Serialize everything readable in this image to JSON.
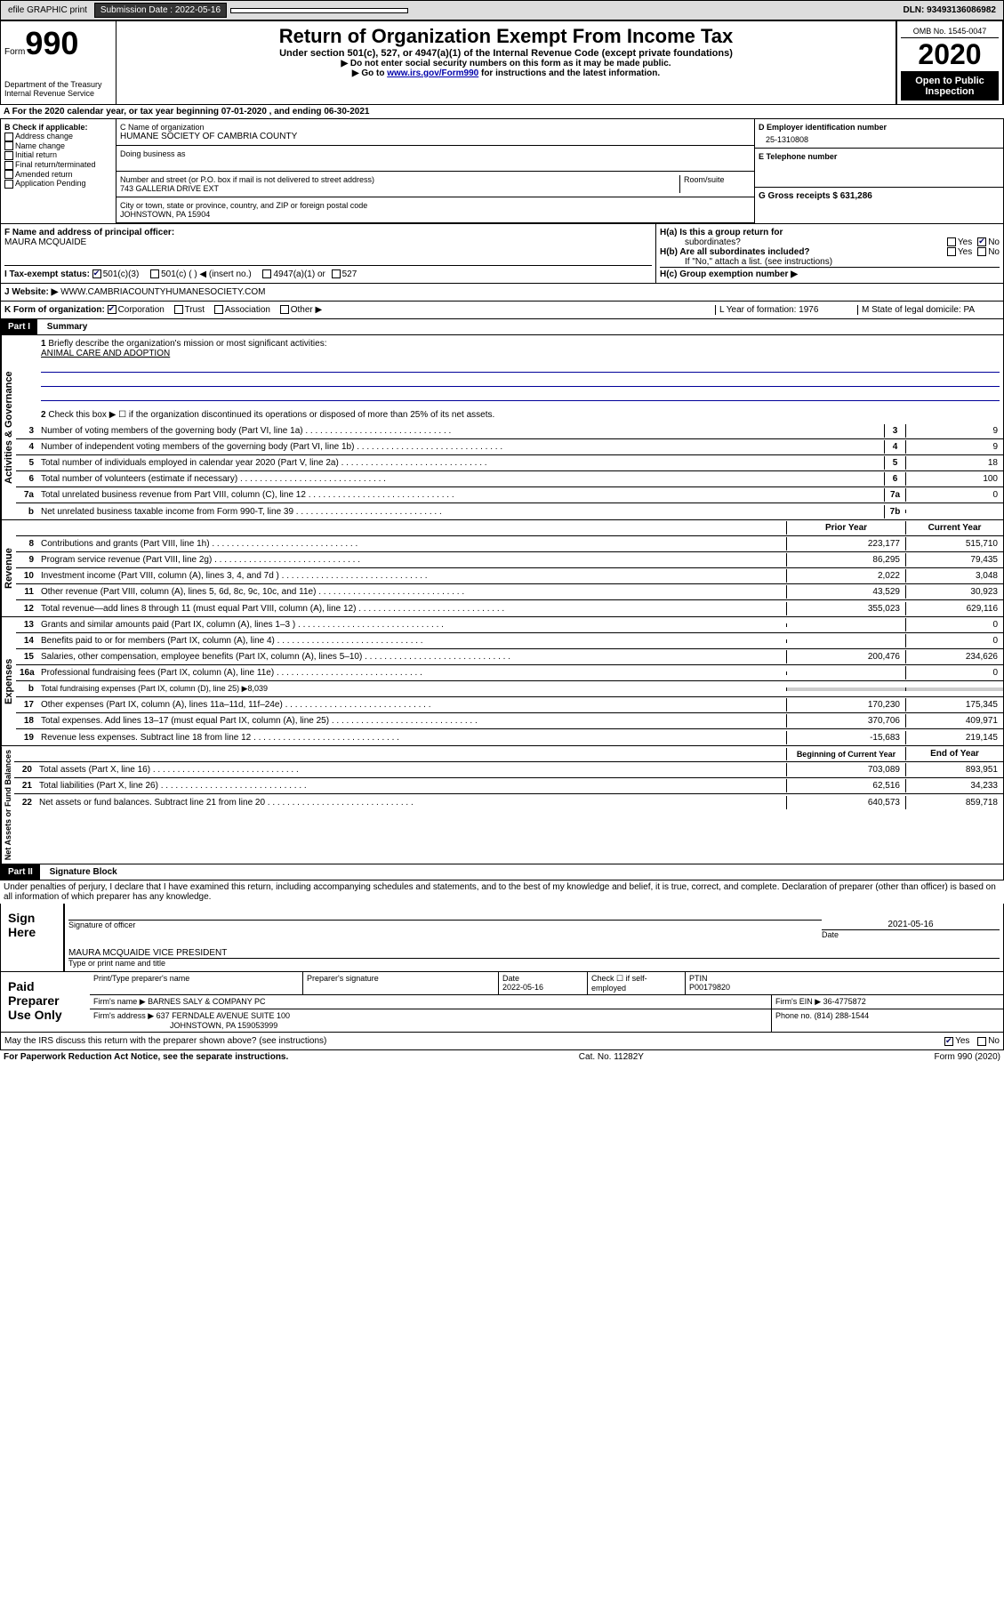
{
  "topbar": {
    "efile": "efile GRAPHIC print",
    "submission_label": "Submission Date : 2022-05-16",
    "dln_label": "DLN: 93493136086982"
  },
  "header": {
    "form_label": "Form",
    "form_number": "990",
    "dept": "Department of the Treasury\nInternal Revenue Service",
    "title": "Return of Organization Exempt From Income Tax",
    "subtitle": "Under section 501(c), 527, or 4947(a)(1) of the Internal Revenue Code (except private foundations)",
    "instr1": "▶ Do not enter social security numbers on this form as it may be made public.",
    "instr2_pre": "▶ Go to ",
    "instr2_link": "www.irs.gov/Form990",
    "instr2_post": " for instructions and the latest information.",
    "omb": "OMB No. 1545-0047",
    "year": "2020",
    "open_public": "Open to Public Inspection"
  },
  "period": "A For the 2020 calendar year, or tax year beginning 07-01-2020   , and ending 06-30-2021",
  "sectionB": {
    "label": "B Check if applicable:",
    "items": [
      "Address change",
      "Name change",
      "Initial return",
      "Final return/terminated",
      "Amended return",
      "Application Pending"
    ]
  },
  "sectionC": {
    "name_label": "C Name of organization",
    "name": "HUMANE SOCIETY OF CAMBRIA COUNTY",
    "dba_label": "Doing business as",
    "street_label": "Number and street (or P.O. box if mail is not delivered to street address)",
    "room_label": "Room/suite",
    "street": "743 GALLERIA DRIVE EXT",
    "city_label": "City or town, state or province, country, and ZIP or foreign postal code",
    "city": "JOHNSTOWN, PA  15904"
  },
  "sectionD": {
    "label": "D Employer identification number",
    "value": "25-1310808"
  },
  "sectionE": {
    "label": "E Telephone number"
  },
  "sectionG": {
    "label": "G Gross receipts $ 631,286"
  },
  "sectionF": {
    "label": "F Name and address of principal officer:",
    "name": "MAURA MCQUAIDE"
  },
  "sectionH": {
    "a_label": "H(a)  Is this a group return for",
    "a_sub": "subordinates?",
    "b_label": "H(b)  Are all subordinates included?",
    "b_instr": "If \"No,\" attach a list. (see instructions)",
    "c_label": "H(c)  Group exemption number ▶",
    "yes": "Yes",
    "no": "No"
  },
  "sectionI": {
    "label": "I   Tax-exempt status:",
    "opts": [
      "501(c)(3)",
      "501(c) (  ) ◀ (insert no.)",
      "4947(a)(1) or",
      "527"
    ]
  },
  "sectionJ": {
    "label": "J   Website: ▶",
    "value": "WWW.CAMBRIACOUNTYHUMANESOCIETY.COM"
  },
  "sectionK": {
    "label": "K Form of organization:",
    "opts": [
      "Corporation",
      "Trust",
      "Association",
      "Other ▶"
    ]
  },
  "sectionL": {
    "label": "L Year of formation: 1976"
  },
  "sectionM": {
    "label": "M State of legal domicile: PA"
  },
  "part1": {
    "header": "Part I",
    "title": "Summary",
    "q1": "Briefly describe the organization's mission or most significant activities:",
    "mission": "ANIMAL CARE AND ADOPTION",
    "q2": "Check this box ▶ ☐ if the organization discontinued its operations or disposed of more than 25% of its net assets.",
    "lines": [
      {
        "n": "3",
        "t": "Number of voting members of the governing body (Part VI, line 1a)",
        "box": "3",
        "v": "9"
      },
      {
        "n": "4",
        "t": "Number of independent voting members of the governing body (Part VI, line 1b)",
        "box": "4",
        "v": "9"
      },
      {
        "n": "5",
        "t": "Total number of individuals employed in calendar year 2020 (Part V, line 2a)",
        "box": "5",
        "v": "18"
      },
      {
        "n": "6",
        "t": "Total number of volunteers (estimate if necessary)",
        "box": "6",
        "v": "100"
      },
      {
        "n": "7a",
        "t": "Total unrelated business revenue from Part VIII, column (C), line 12",
        "box": "7a",
        "v": "0"
      },
      {
        "n": "b",
        "t": "Net unrelated business taxable income from Form 990-T, line 39",
        "box": "7b",
        "v": ""
      }
    ],
    "hdr_prior": "Prior Year",
    "hdr_current": "Current Year",
    "revenue": [
      {
        "n": "8",
        "t": "Contributions and grants (Part VIII, line 1h)",
        "p": "223,177",
        "c": "515,710"
      },
      {
        "n": "9",
        "t": "Program service revenue (Part VIII, line 2g)",
        "p": "86,295",
        "c": "79,435"
      },
      {
        "n": "10",
        "t": "Investment income (Part VIII, column (A), lines 3, 4, and 7d )",
        "p": "2,022",
        "c": "3,048"
      },
      {
        "n": "11",
        "t": "Other revenue (Part VIII, column (A), lines 5, 6d, 8c, 9c, 10c, and 11e)",
        "p": "43,529",
        "c": "30,923"
      },
      {
        "n": "12",
        "t": "Total revenue—add lines 8 through 11 (must equal Part VIII, column (A), line 12)",
        "p": "355,023",
        "c": "629,116"
      }
    ],
    "expenses": [
      {
        "n": "13",
        "t": "Grants and similar amounts paid (Part IX, column (A), lines 1–3 )",
        "p": "",
        "c": "0"
      },
      {
        "n": "14",
        "t": "Benefits paid to or for members (Part IX, column (A), line 4)",
        "p": "",
        "c": "0"
      },
      {
        "n": "15",
        "t": "Salaries, other compensation, employee benefits (Part IX, column (A), lines 5–10)",
        "p": "200,476",
        "c": "234,626"
      },
      {
        "n": "16a",
        "t": "Professional fundraising fees (Part IX, column (A), line 11e)",
        "p": "",
        "c": "0"
      },
      {
        "n": "b",
        "t": "Total fundraising expenses (Part IX, column (D), line 25) ▶8,039",
        "p": "gray",
        "c": "gray"
      },
      {
        "n": "17",
        "t": "Other expenses (Part IX, column (A), lines 11a–11d, 11f–24e)",
        "p": "170,230",
        "c": "175,345"
      },
      {
        "n": "18",
        "t": "Total expenses. Add lines 13–17 (must equal Part IX, column (A), line 25)",
        "p": "370,706",
        "c": "409,971"
      },
      {
        "n": "19",
        "t": "Revenue less expenses. Subtract line 18 from line 12",
        "p": "-15,683",
        "c": "219,145"
      }
    ],
    "hdr_begin": "Beginning of Current Year",
    "hdr_end": "End of Year",
    "netassets": [
      {
        "n": "20",
        "t": "Total assets (Part X, line 16)",
        "p": "703,089",
        "c": "893,951"
      },
      {
        "n": "21",
        "t": "Total liabilities (Part X, line 26)",
        "p": "62,516",
        "c": "34,233"
      },
      {
        "n": "22",
        "t": "Net assets or fund balances. Subtract line 21 from line 20",
        "p": "640,573",
        "c": "859,718"
      }
    ],
    "vlabel_gov": "Activities & Governance",
    "vlabel_rev": "Revenue",
    "vlabel_exp": "Expenses",
    "vlabel_net": "Net Assets or Fund Balances"
  },
  "part2": {
    "header": "Part II",
    "title": "Signature Block",
    "declaration": "Under penalties of perjury, I declare that I have examined this return, including accompanying schedules and statements, and to the best of my knowledge and belief, it is true, correct, and complete. Declaration of preparer (other than officer) is based on all information of which preparer has any knowledge.",
    "sign_here": "Sign Here",
    "sig_officer": "Signature of officer",
    "sig_date": "Date",
    "sig_date_val": "2021-05-16",
    "officer_name": "MAURA MCQUAIDE  VICE PRESIDENT",
    "officer_type": "Type or print name and title",
    "paid_prep": "Paid Preparer Use Only",
    "prep_name_label": "Print/Type preparer's name",
    "prep_sig_label": "Preparer's signature",
    "prep_date_label": "Date",
    "prep_date": "2022-05-16",
    "prep_check": "Check ☐ if self-employed",
    "ptin_label": "PTIN",
    "ptin": "P00179820",
    "firm_name_label": "Firm's name    ▶",
    "firm_name": "BARNES SALY & COMPANY PC",
    "firm_ein_label": "Firm's EIN ▶",
    "firm_ein": "36-4775872",
    "firm_addr_label": "Firm's address ▶",
    "firm_addr": "637 FERNDALE AVENUE SUITE 100",
    "firm_addr2": "JOHNSTOWN, PA  159053999",
    "phone_label": "Phone no.",
    "phone": "(814) 288-1544",
    "discuss": "May the IRS discuss this return with the preparer shown above? (see instructions)"
  },
  "footer": {
    "paperwork": "For Paperwork Reduction Act Notice, see the separate instructions.",
    "cat": "Cat. No. 11282Y",
    "form": "Form 990 (2020)"
  }
}
